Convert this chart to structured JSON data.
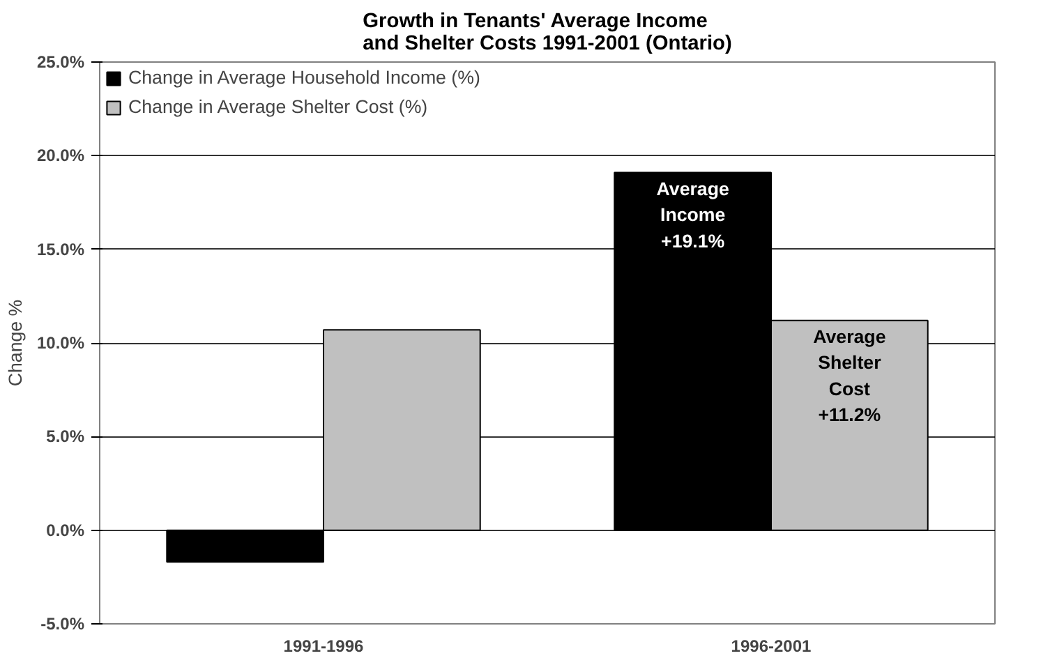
{
  "chart_data": {
    "type": "bar",
    "title": "Growth in Tenants' Average Income and Shelter Costs 1991-2001 (Ontario)",
    "ylabel": "Change %",
    "categories": [
      "1991-1996",
      "1996-2001"
    ],
    "series": [
      {
        "name": "Change in Average Household Income (%)",
        "color": "#000000",
        "values": [
          -1.7,
          19.1
        ]
      },
      {
        "name": "Change in Average Shelter Cost (%)",
        "color": "#c0c0c0",
        "values": [
          10.7,
          11.2
        ]
      }
    ],
    "ylim": [
      -5,
      25
    ],
    "yticks": [
      {
        "value": -5,
        "label": "-5.0%"
      },
      {
        "value": 0,
        "label": "0.0%"
      },
      {
        "value": 5,
        "label": "5.0%"
      },
      {
        "value": 10,
        "label": "10.0%"
      },
      {
        "value": 15,
        "label": "15.0%"
      },
      {
        "value": 20,
        "label": "20.0%"
      },
      {
        "value": 25,
        "label": "25.0%"
      }
    ],
    "annotations": [
      {
        "text": "Average\nIncome\n+19.1%",
        "x": "1996-2001",
        "y": 19.1
      },
      {
        "text": "Average\nShelter\nCost\n+11.2%",
        "x": "1996-2001",
        "y": 11.2
      }
    ],
    "grid": "y",
    "legend": "top left"
  }
}
